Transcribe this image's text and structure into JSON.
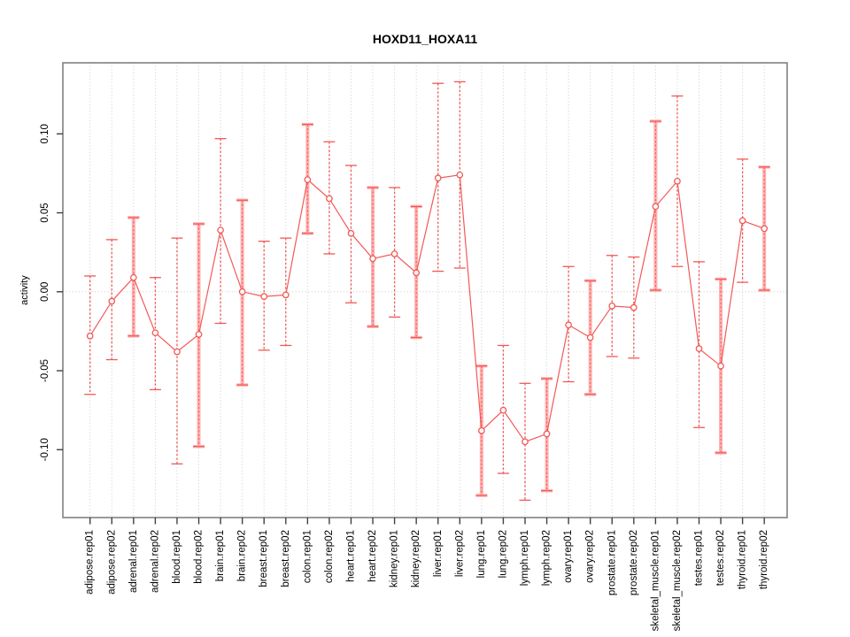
{
  "chart_data": {
    "type": "line",
    "subtype": "points-with-error-bars",
    "title": "HOXD11_HOXA11",
    "xlabel": "",
    "ylabel": "activity",
    "legend": "none",
    "grid": "vertical dotted per category; horizontal dotted at zero",
    "marker": "open-circle",
    "categories": [
      "adipose.rep01",
      "adipose.rep02",
      "adrenal.rep01",
      "adrenal.rep02",
      "blood.rep01",
      "blood.rep02",
      "brain.rep01",
      "brain.rep02",
      "breast.rep01",
      "breast.rep02",
      "colon.rep01",
      "colon.rep02",
      "heart.rep01",
      "heart.rep02",
      "kidney.rep01",
      "kidney.rep02",
      "liver.rep01",
      "liver.rep02",
      "lung.rep01",
      "lung.rep02",
      "lymph.rep01",
      "lymph.rep02",
      "ovary.rep01",
      "ovary.rep02",
      "prostate.rep01",
      "prostate.rep02",
      "skeletal_muscle.rep01",
      "skeletal_muscle.rep02",
      "testes.rep01",
      "testes.rep02",
      "thyroid.rep01",
      "thyroid.rep02"
    ],
    "series": [
      {
        "name": "activity",
        "values": [
          -0.028,
          -0.006,
          0.009,
          -0.026,
          -0.038,
          -0.027,
          0.039,
          0.0,
          -0.003,
          -0.002,
          0.071,
          0.059,
          0.037,
          0.021,
          0.024,
          0.012,
          0.072,
          0.074,
          -0.088,
          -0.075,
          -0.095,
          -0.09,
          -0.021,
          -0.029,
          -0.009,
          -0.01,
          0.054,
          0.07,
          -0.036,
          -0.047,
          0.045,
          0.04
        ]
      }
    ],
    "ci_low": [
      -0.065,
      -0.043,
      -0.028,
      -0.062,
      -0.109,
      -0.098,
      -0.02,
      -0.059,
      -0.037,
      -0.034,
      0.037,
      0.024,
      -0.007,
      -0.022,
      -0.016,
      -0.029,
      0.013,
      0.015,
      -0.129,
      -0.115,
      -0.132,
      -0.126,
      -0.057,
      -0.065,
      -0.041,
      -0.042,
      0.001,
      0.016,
      -0.086,
      -0.102,
      0.006,
      0.001
    ],
    "ci_high": [
      0.01,
      0.033,
      0.047,
      0.009,
      0.034,
      0.043,
      0.097,
      0.058,
      0.032,
      0.034,
      0.106,
      0.095,
      0.08,
      0.066,
      0.066,
      0.054,
      0.132,
      0.133,
      -0.047,
      -0.034,
      -0.058,
      -0.055,
      0.016,
      0.007,
      0.023,
      0.022,
      0.108,
      0.124,
      0.019,
      0.008,
      0.084,
      0.079
    ],
    "bar_style": [
      "dashed",
      "dashed",
      "thick",
      "dashed",
      "dashed",
      "thick",
      "dashed",
      "thick",
      "dashed",
      "dashed",
      "thick",
      "dashed",
      "dashed",
      "thick",
      "dashed",
      "thick",
      "dashed",
      "dashed",
      "thick",
      "dashed",
      "dashed",
      "thick",
      "dashed",
      "thick",
      "dashed",
      "dashed",
      "thick",
      "dashed",
      "dashed",
      "thick",
      "dashed",
      "thick"
    ],
    "yticks": [
      0.1,
      0.05,
      0.0,
      -0.05,
      -0.1
    ],
    "ytick_labels": [
      "0.10",
      "0.05",
      "0.00",
      "-0.05",
      "-0.10"
    ],
    "ylim": [
      -0.143,
      0.145
    ],
    "colors": {
      "series": "#f15956",
      "ci_thick": "#ffafaf",
      "grid": "#cccccc",
      "frame": "#808080",
      "tick": "#404040",
      "text": "#000000",
      "background": "#ffffff"
    }
  }
}
